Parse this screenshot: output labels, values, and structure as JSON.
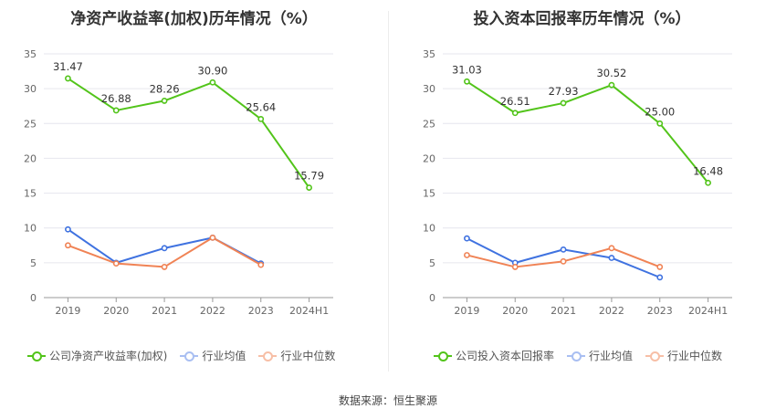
{
  "source": "数据来源：恒生聚源",
  "chart_data": [
    {
      "type": "line",
      "title": "净资产收益率(加权)历年情况（%）",
      "categories": [
        "2019",
        "2020",
        "2021",
        "2022",
        "2023",
        "2024H1"
      ],
      "ylim": [
        0,
        35
      ],
      "yticks": [
        0,
        5,
        10,
        15,
        20,
        25,
        30,
        35
      ],
      "grid": true,
      "legend_position": "bottom",
      "series": [
        {
          "name": "公司净资产收益率(加权)",
          "color": "#52c41a",
          "values": [
            31.47,
            26.88,
            28.26,
            30.9,
            25.64,
            15.79
          ],
          "labels": [
            "31.47",
            "26.88",
            "28.26",
            "30.90",
            "25.64",
            "15.79"
          ]
        },
        {
          "name": "行业均值",
          "color": "#3f72e0",
          "values": [
            9.8,
            5.0,
            7.1,
            8.6,
            4.9,
            null
          ]
        },
        {
          "name": "行业中位数",
          "color": "#f08355",
          "values": [
            7.5,
            4.9,
            4.4,
            8.6,
            4.7,
            null
          ]
        }
      ]
    },
    {
      "type": "line",
      "title": "投入资本回报率历年情况（%）",
      "categories": [
        "2019",
        "2020",
        "2021",
        "2022",
        "2023",
        "2024H1"
      ],
      "ylim": [
        0,
        35
      ],
      "yticks": [
        0,
        5,
        10,
        15,
        20,
        25,
        30,
        35
      ],
      "grid": true,
      "legend_position": "bottom",
      "series": [
        {
          "name": "公司投入资本回报率",
          "color": "#52c41a",
          "values": [
            31.03,
            26.51,
            27.93,
            30.52,
            25.0,
            16.48
          ],
          "labels": [
            "31.03",
            "26.51",
            "27.93",
            "30.52",
            "25.00",
            "16.48"
          ]
        },
        {
          "name": "行业均值",
          "color": "#3f72e0",
          "values": [
            8.5,
            5.0,
            6.9,
            5.7,
            2.9,
            null
          ]
        },
        {
          "name": "行业中位数",
          "color": "#f08355",
          "values": [
            6.1,
            4.4,
            5.2,
            7.1,
            4.4,
            null
          ]
        }
      ]
    }
  ]
}
